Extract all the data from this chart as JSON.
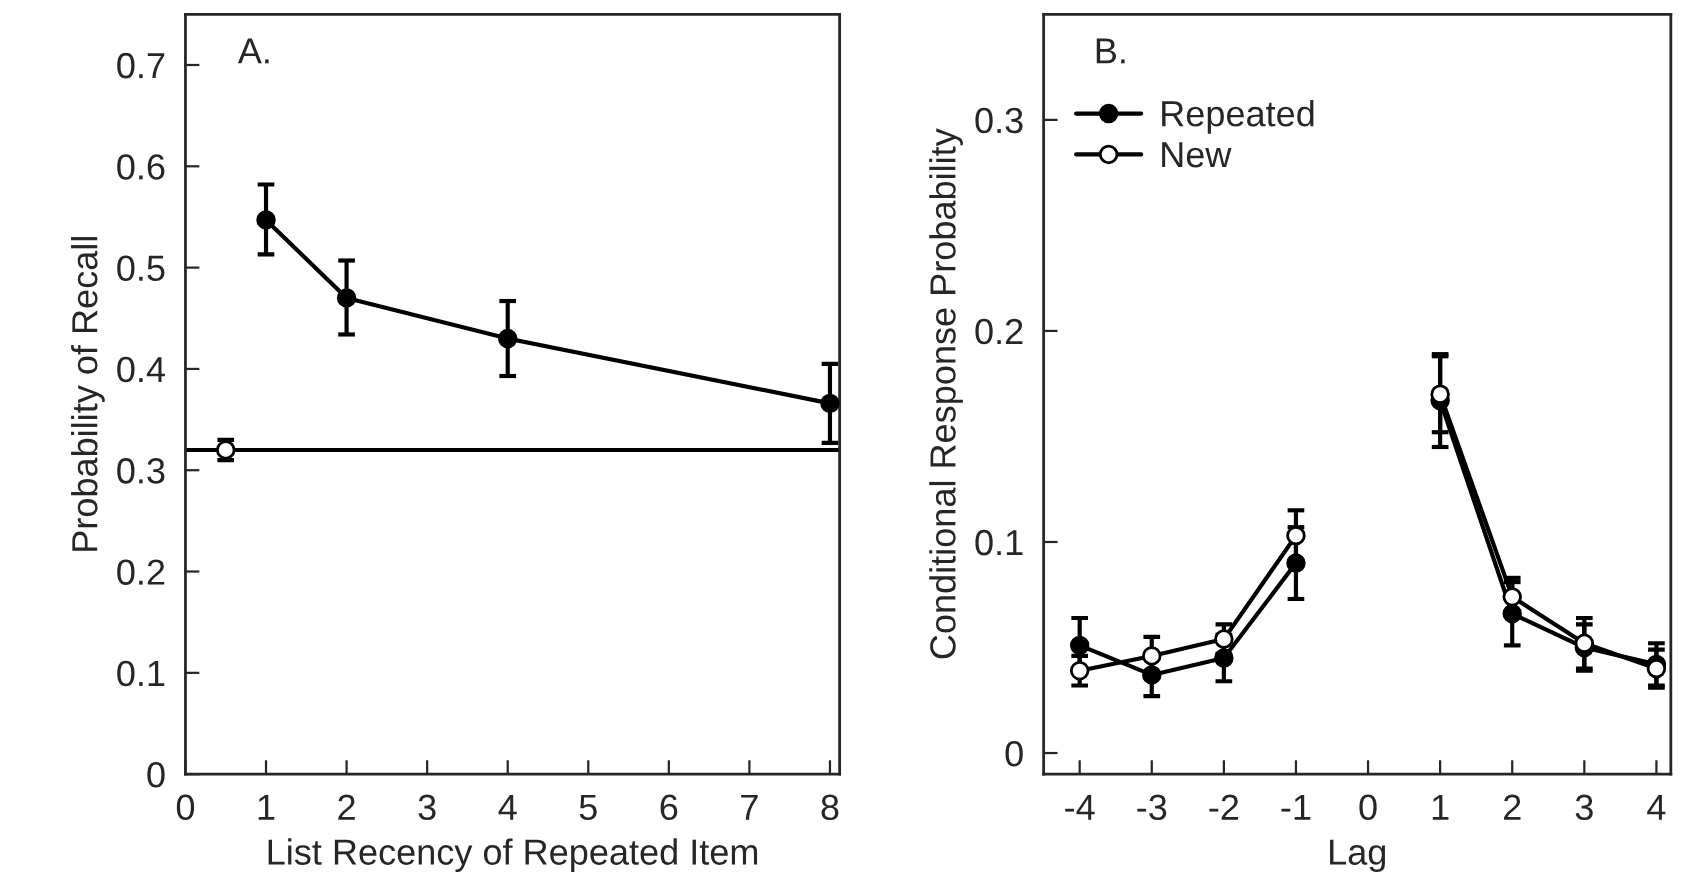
{
  "chart_data": [
    {
      "type": "line",
      "title": "A.",
      "xlabel": "List Recency of Repeated Item",
      "ylabel": "Probability of Recall",
      "x": [
        1,
        2,
        4,
        8
      ],
      "xlim": [
        0,
        8.12
      ],
      "xticks": [
        0,
        1,
        2,
        3,
        4,
        5,
        6,
        7,
        8
      ],
      "ylim": [
        0,
        0.75
      ],
      "yticks": [
        0,
        0.1,
        0.2,
        0.3,
        0.4,
        0.5,
        0.6,
        0.7
      ],
      "series": [
        {
          "type": "line",
          "color": "#000000",
          "values": [
            0.547,
            0.47,
            0.43,
            0.366
          ],
          "errors": [
            [
              0.513,
              0.582
            ],
            [
              0.434,
              0.507
            ],
            [
              0.393,
              0.467
            ],
            [
              0.327,
              0.405
            ]
          ]
        },
        {
          "type": "scatter",
          "x": [
            0.5
          ],
          "color": "#ffffff",
          "values": [
            0.32
          ],
          "errors": [
            0.01
          ]
        }
      ],
      "ref_lines": [
        {
          "axis": "y",
          "value": 0.32,
          "color": "#000000"
        }
      ],
      "marker": "circle",
      "grid": false,
      "legend": false
    },
    {
      "type": "line",
      "title": "B.",
      "xlabel": "Lag",
      "ylabel": "Conditional Response Probability",
      "x": [
        -4,
        -3,
        -2,
        -1,
        0,
        1,
        2,
        3,
        4
      ],
      "xlim": [
        -4.5,
        4.2
      ],
      "xticks": [
        -4,
        -3,
        -2,
        -1,
        0,
        1,
        2,
        3,
        4
      ],
      "ylim": [
        -0.01,
        0.35
      ],
      "yticks": [
        0,
        0.1,
        0.2,
        0.3
      ],
      "series": [
        {
          "name": "Repeated",
          "color": "#000000",
          "values": [
            0.051,
            0.037,
            0.045,
            0.09,
            null,
            0.167,
            0.066,
            0.05,
            0.042
          ],
          "errors": [
            0.013,
            0.01,
            0.011,
            0.017,
            null,
            0.022,
            0.015,
            0.011,
            0.01
          ]
        },
        {
          "name": "New",
          "color": "#ffffff",
          "values": [
            0.039,
            0.046,
            0.054,
            0.103,
            null,
            0.17,
            0.074,
            0.052,
            0.04
          ],
          "errors": [
            0.007,
            0.009,
            0.007,
            0.012,
            null,
            0.018,
            0.009,
            0.012,
            0.009
          ]
        }
      ],
      "marker": "circle",
      "grid": false,
      "legend": "top left"
    }
  ]
}
